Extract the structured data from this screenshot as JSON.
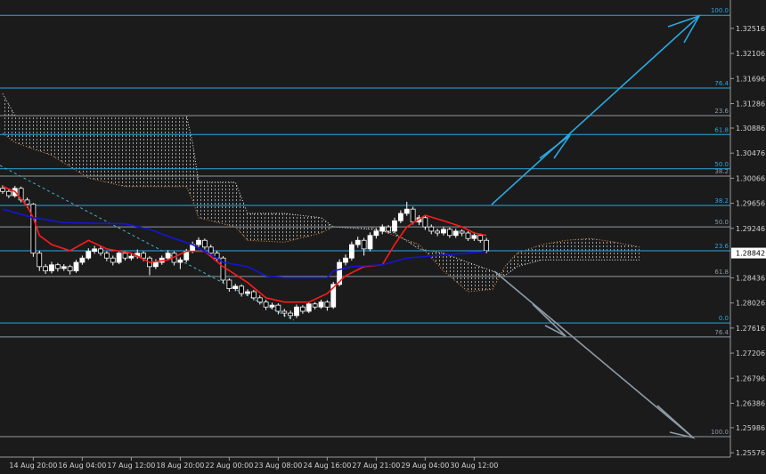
{
  "chart_data": {
    "type": "candlestick",
    "categories": [
      null,
      null,
      null,
      null,
      null,
      "14 Aug 20:00",
      null,
      null,
      null,
      null,
      null,
      null,
      null,
      "16 Aug 04:00",
      null,
      null,
      null,
      null,
      null,
      null,
      null,
      "17 Aug 12:00",
      null,
      null,
      null,
      null,
      null,
      null,
      null,
      "18 Aug 20:00",
      null,
      null,
      null,
      null,
      null,
      null,
      null,
      "22 Aug 00:00",
      null,
      null,
      null,
      null,
      null,
      null,
      null,
      "23 Aug 08:00",
      null,
      null,
      null,
      null,
      null,
      null,
      null,
      "24 Aug 16:00",
      null,
      null,
      null,
      null,
      null,
      null,
      null,
      "27 Aug 21:00",
      null,
      null,
      null,
      null,
      null,
      null,
      null,
      "29 Aug 04:00",
      null,
      null,
      null,
      null,
      null,
      null,
      null,
      "30 Aug 12:00",
      null,
      null
    ],
    "open": [
      1.299,
      1.2985,
      1.2978,
      1.299,
      1.2971,
      1.2964,
      1.2884,
      1.2862,
      1.2855,
      1.2865,
      1.2859,
      1.2862,
      1.2855,
      1.2869,
      1.2876,
      1.2887,
      1.2891,
      1.2884,
      1.2876,
      1.2869,
      1.2884,
      1.2876,
      1.2879,
      1.2884,
      1.2876,
      1.2862,
      1.2869,
      1.2876,
      1.2884,
      1.2869,
      1.2873,
      1.2887,
      1.2898,
      1.2905,
      1.2894,
      1.2884,
      1.2876,
      1.284,
      1.2826,
      1.283,
      1.2818,
      1.2821,
      1.2811,
      1.2804,
      1.2796,
      1.2799,
      1.2789,
      1.2786,
      1.2782,
      1.2796,
      1.2789,
      1.2801,
      1.2796,
      1.2804,
      1.2796,
      1.2833,
      1.2869,
      1.2876,
      1.2898,
      1.2905,
      1.2891,
      1.2913,
      1.292,
      1.2927,
      1.292,
      1.2937,
      1.2949,
      1.2956,
      1.2935,
      1.2942,
      1.2927,
      1.292,
      1.2917,
      1.2923,
      1.2913,
      1.292,
      1.2917,
      1.2908,
      1.2913,
      1.2905
    ],
    "high": [
      1.2995,
      1.2989,
      1.2994,
      1.2993,
      1.2975,
      1.2966,
      1.2888,
      1.2866,
      1.287,
      1.2868,
      1.2866,
      1.2865,
      1.2873,
      1.288,
      1.2892,
      1.2896,
      1.2895,
      1.2887,
      1.288,
      1.2888,
      1.2887,
      1.2883,
      1.289,
      1.2887,
      1.2879,
      1.2874,
      1.288,
      1.2889,
      1.2887,
      1.2877,
      1.2891,
      1.2903,
      1.291,
      1.2908,
      1.2898,
      1.2888,
      1.2879,
      1.2843,
      1.2834,
      1.2833,
      1.2825,
      1.2824,
      1.2815,
      1.2808,
      1.2803,
      1.2802,
      1.2793,
      1.279,
      1.28,
      1.2799,
      1.2805,
      1.2804,
      1.2808,
      1.2807,
      1.2837,
      1.2874,
      1.2882,
      1.2903,
      1.2911,
      1.2909,
      1.2918,
      1.2925,
      1.2931,
      1.293,
      1.2942,
      1.2954,
      1.2968,
      1.296,
      1.2946,
      1.2945,
      1.2931,
      1.2924,
      1.2927,
      1.2926,
      1.2924,
      1.2923,
      1.292,
      1.2917,
      1.2916,
      1.2909
    ],
    "low": [
      1.2981,
      1.2974,
      1.2975,
      1.2967,
      1.2958,
      1.2878,
      1.2855,
      1.285,
      1.2851,
      1.2854,
      1.2855,
      1.2849,
      1.2852,
      1.2865,
      1.2873,
      1.2883,
      1.288,
      1.2871,
      1.2864,
      1.2866,
      1.2872,
      1.2872,
      1.2875,
      1.2871,
      1.2848,
      1.2858,
      1.2865,
      1.2872,
      1.2864,
      1.2858,
      1.2869,
      1.2884,
      1.2894,
      1.289,
      1.288,
      1.2871,
      1.2835,
      1.2821,
      1.2822,
      1.2813,
      1.2814,
      1.2807,
      1.28,
      1.2791,
      1.2792,
      1.2784,
      1.278,
      1.2776,
      1.2778,
      1.2785,
      1.2786,
      1.2792,
      1.2793,
      1.279,
      1.2793,
      1.283,
      1.2864,
      1.2872,
      1.2893,
      1.288,
      1.2887,
      1.2908,
      1.2915,
      1.2916,
      1.2917,
      1.2933,
      1.2945,
      1.2931,
      1.293,
      1.2922,
      1.2915,
      1.2912,
      1.2913,
      1.2909,
      1.2909,
      1.2912,
      1.2904,
      1.2904,
      1.2901,
      1.2884
    ],
    "close": [
      1.2985,
      1.2978,
      1.299,
      1.2971,
      1.2964,
      1.2884,
      1.2862,
      1.2855,
      1.2865,
      1.2859,
      1.2862,
      1.2855,
      1.2869,
      1.2876,
      1.2887,
      1.2891,
      1.2884,
      1.2876,
      1.2869,
      1.2884,
      1.2876,
      1.2879,
      1.2884,
      1.2876,
      1.2862,
      1.2869,
      1.2876,
      1.2884,
      1.2869,
      1.2873,
      1.2887,
      1.2898,
      1.2905,
      1.2894,
      1.2884,
      1.2876,
      1.284,
      1.2826,
      1.283,
      1.2818,
      1.2821,
      1.2811,
      1.2804,
      1.2796,
      1.2799,
      1.2789,
      1.2786,
      1.2782,
      1.2796,
      1.2789,
      1.2801,
      1.2796,
      1.2804,
      1.2796,
      1.2833,
      1.2869,
      1.2876,
      1.2898,
      1.2905,
      1.2891,
      1.2913,
      1.292,
      1.2927,
      1.292,
      1.2937,
      1.2949,
      1.2956,
      1.2935,
      1.2942,
      1.2927,
      1.292,
      1.2917,
      1.2923,
      1.2913,
      1.292,
      1.2917,
      1.2908,
      1.2913,
      1.2905,
      1.2888
    ],
    "up_color": "#ffffff",
    "down_color": "#000000",
    "ylim": [
      1.2552,
      1.3298
    ],
    "yticks": [
      1.32516,
      1.32106,
      1.31696,
      1.31286,
      1.30886,
      1.30476,
      1.30066,
      1.29656,
      1.29246,
      1.28436,
      1.28026,
      1.27616,
      1.27206,
      1.26796,
      1.26386,
      1.25986,
      1.25576
    ],
    "current_price": 1.28842,
    "tenkan": {
      "color": "#ff1a1a",
      "x": [
        0,
        2,
        4,
        5,
        6,
        8,
        11,
        14,
        17,
        21,
        24,
        27,
        30,
        33,
        36,
        40,
        43,
        46,
        50,
        53,
        56,
        59,
        62,
        64,
        66,
        69,
        72,
        75,
        77,
        79
      ],
      "values": [
        1.2993,
        1.2985,
        1.2961,
        1.2942,
        1.2913,
        1.2898,
        1.2888,
        1.2905,
        1.2891,
        1.2884,
        1.2869,
        1.2873,
        1.2887,
        1.2887,
        1.2862,
        1.2836,
        1.2811,
        1.2804,
        1.2804,
        1.2818,
        1.2847,
        1.2862,
        1.2865,
        1.2898,
        1.2927,
        1.2946,
        1.2937,
        1.2927,
        1.2917,
        1.2913
      ]
    },
    "kijun": {
      "color": "#1414d8",
      "x": [
        0,
        5,
        10,
        20,
        24,
        28,
        31,
        35,
        36,
        40,
        43,
        46,
        53,
        54,
        57,
        62,
        66,
        72,
        79
      ],
      "values": [
        1.2956,
        1.2942,
        1.2934,
        1.2932,
        1.2923,
        1.2908,
        1.2898,
        1.2876,
        1.2869,
        1.2862,
        1.2847,
        1.2844,
        1.2844,
        1.2855,
        1.2862,
        1.2865,
        1.2876,
        1.2881,
        1.2887
      ]
    },
    "cloud": {
      "color_a": "#e0904a",
      "color_b": "#e8e8e8",
      "x": [
        0,
        2,
        8,
        14,
        20,
        30,
        31,
        32,
        38,
        40,
        46,
        52,
        54,
        60,
        64,
        68,
        72,
        76,
        80,
        82,
        84,
        88,
        92,
        96,
        100,
        104
      ],
      "span_a": [
        1.308,
        1.3065,
        1.3044,
        1.3007,
        1.2993,
        1.2993,
        1.2971,
        1.2942,
        1.2927,
        1.2905,
        1.2902,
        1.2917,
        1.2927,
        1.2927,
        1.2913,
        1.2898,
        1.2855,
        1.2821,
        1.2825,
        1.2862,
        1.2884,
        1.2898,
        1.2905,
        1.2908,
        1.2902,
        1.2894
      ],
      "span_b": [
        1.3145,
        1.3109,
        1.3109,
        1.3109,
        1.3109,
        1.3109,
        1.3065,
        1.3,
        1.3,
        1.2949,
        1.2949,
        1.2942,
        1.2927,
        1.2923,
        1.2917,
        1.2891,
        1.2884,
        1.2869,
        1.2855,
        1.2847,
        1.2862,
        1.2873,
        1.2873,
        1.2873,
        1.2873,
        1.2873
      ]
    },
    "levels": [
      {
        "label": "100.0",
        "value": 1.3273,
        "color": "#2aa8e0"
      },
      {
        "label": "76.4",
        "value": 1.3154,
        "color": "#2aa8e0"
      },
      {
        "label": "23.6",
        "value": 1.3109,
        "color": "#8d9aa6"
      },
      {
        "label": "61.8",
        "value": 1.3078,
        "color": "#2aa8e0"
      },
      {
        "label": "50.0",
        "value": 1.3022,
        "color": "#2aa8e0"
      },
      {
        "label": "38.2",
        "value": 1.301,
        "color": "#8d9aa6"
      },
      {
        "label": "38.2",
        "value": 1.2962,
        "color": "#2aa8e0"
      },
      {
        "label": "50.0",
        "value": 1.2927,
        "color": "#8d9aa6"
      },
      {
        "label": "23.6",
        "value": 1.2888,
        "color": "#2aa8e0"
      },
      {
        "label": "61.8",
        "value": 1.2846,
        "color": "#8d9aa6"
      },
      {
        "label": "0.0",
        "value": 1.277,
        "color": "#2aa8e0"
      },
      {
        "label": "76.4",
        "value": 1.2747,
        "color": "#8d9aa6"
      },
      {
        "label": "100.0",
        "value": 1.2584,
        "color": "#8d9aa6"
      }
    ]
  }
}
